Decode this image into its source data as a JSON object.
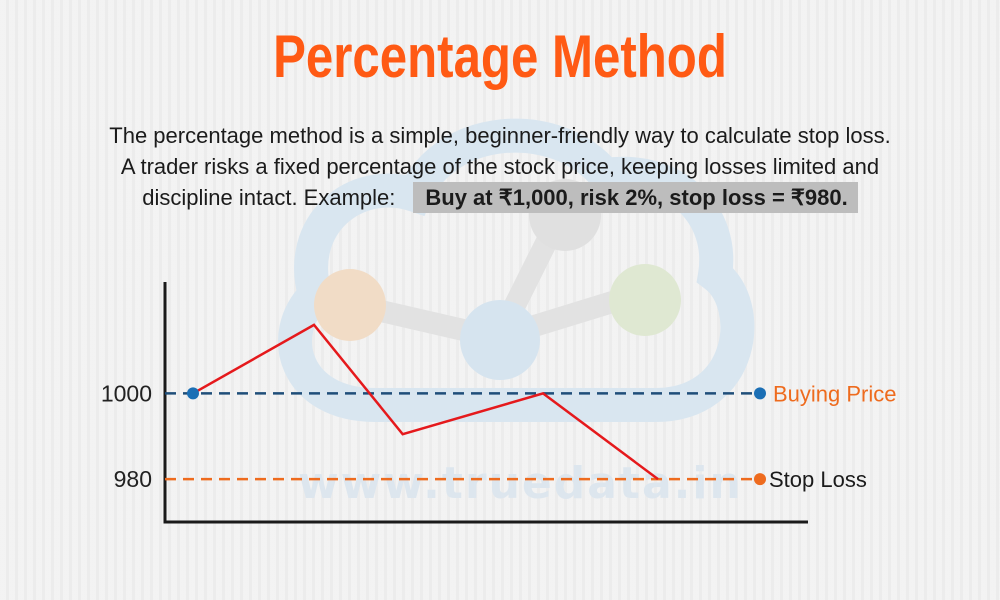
{
  "header": {
    "title": "Percentage Method",
    "description_line1": "The percentage method is a simple, beginner-friendly way to calculate stop loss.",
    "description_line2": "A trader risks a fixed percentage of the stock price, keeping losses limited and",
    "description_line3": "discipline intact. Example:",
    "example_highlight": "Buy at ₹1,000, risk 2%, stop loss = ₹980."
  },
  "watermark": {
    "text": "www.truedata.in"
  },
  "colors": {
    "title": "#ff5a14",
    "price_line": "#e5191c",
    "buying_price": "#1f4e79",
    "buying_price_dot": "#1b6fb5",
    "stop_loss": "#ee6b1e",
    "axis": "#1a1a1a"
  },
  "chart_data": {
    "type": "line",
    "title": "",
    "xlabel": "",
    "ylabel": "",
    "yticks": [
      1000,
      980
    ],
    "ylim": [
      970,
      1026
    ],
    "series": [
      {
        "values": [
          1000,
          1016,
          990.5,
          1000,
          980
        ]
      }
    ],
    "reference_lines": [
      {
        "name": "Buying Price",
        "value": 1000,
        "style": "dashed"
      },
      {
        "name": "Stop Loss",
        "value": 980,
        "style": "dashed"
      }
    ],
    "legend": "right-of-lines"
  }
}
